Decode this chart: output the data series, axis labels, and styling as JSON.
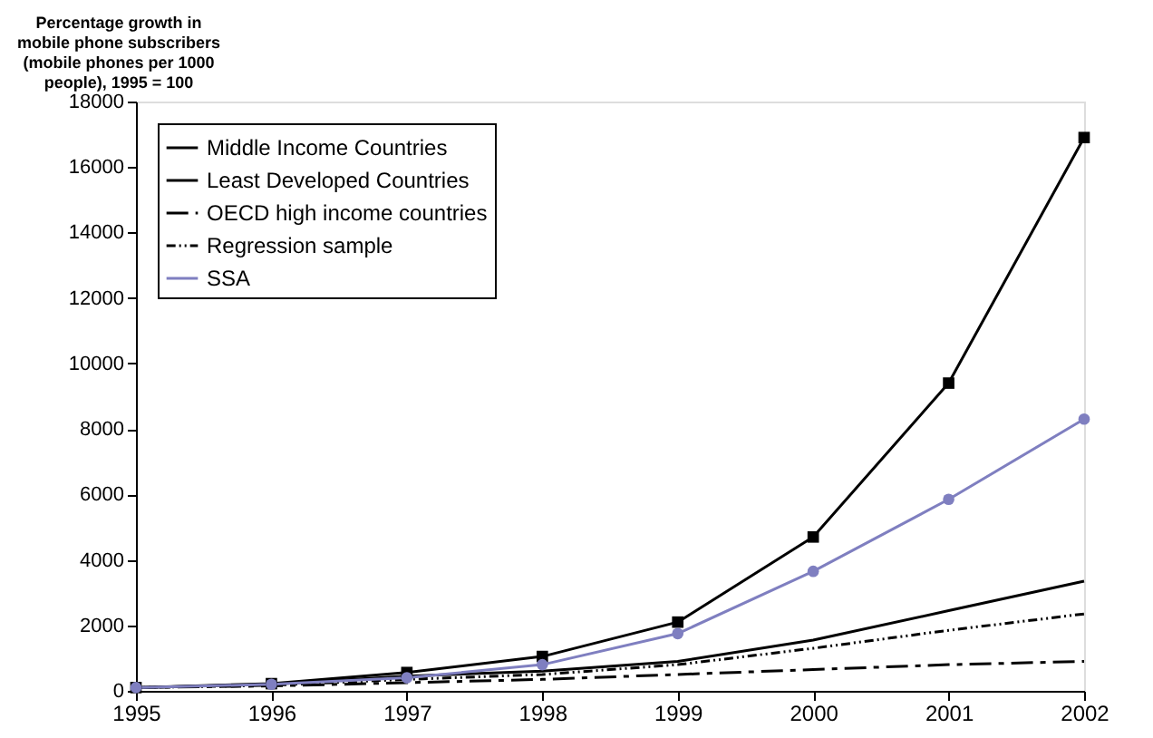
{
  "chart_data": {
    "type": "line",
    "ylabel": "Percentage growth in mobile phone subscribers (mobile phones per 1000 people), 1995 = 100",
    "categories": [
      "1995",
      "1996",
      "1997",
      "1998",
      "1999",
      "2000",
      "2001",
      "2002"
    ],
    "series": [
      {
        "name": "Middle Income Countries",
        "color": "#000000",
        "marker": "none",
        "line_style": "solid",
        "values": [
          100,
          200,
          450,
          600,
          900,
          1550,
          2450,
          3350
        ]
      },
      {
        "name": "Least Developed Countries",
        "color": "#000000",
        "marker": "square",
        "line_style": "solid",
        "values": [
          100,
          220,
          560,
          1050,
          2100,
          4700,
          9400,
          16900
        ]
      },
      {
        "name": "OECD high income countries",
        "color": "#000000",
        "marker": "none",
        "line_style": "dashed",
        "values": [
          100,
          150,
          250,
          350,
          500,
          650,
          800,
          900
        ]
      },
      {
        "name": "Regression sample",
        "color": "#000000",
        "marker": "none",
        "line_style": "dotted",
        "values": [
          100,
          170,
          350,
          500,
          800,
          1300,
          1850,
          2350
        ]
      },
      {
        "name": "SSA",
        "color": "#7f7fc0",
        "marker": "circle",
        "line_style": "solid",
        "values": [
          100,
          200,
          400,
          800,
          1750,
          3650,
          5850,
          8300
        ]
      }
    ],
    "ylim": [
      0,
      18000
    ],
    "yticks": [
      0,
      2000,
      4000,
      6000,
      8000,
      10000,
      12000,
      14000,
      16000,
      18000
    ],
    "grid": false,
    "legend": "top left"
  }
}
